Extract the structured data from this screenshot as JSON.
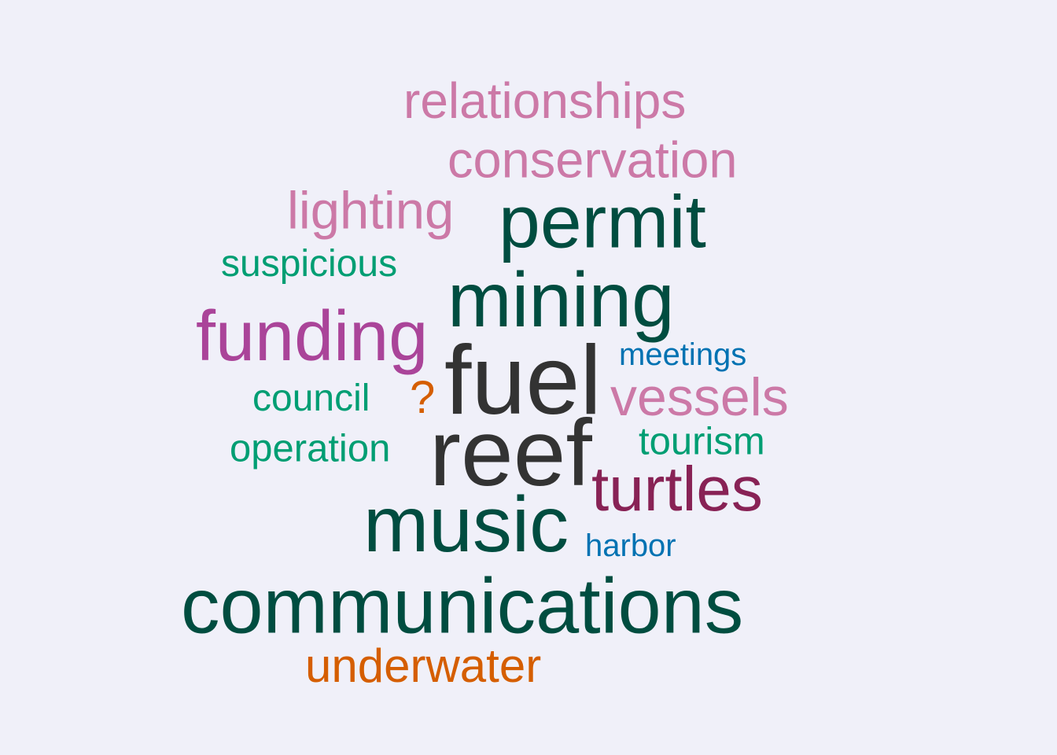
{
  "colors": {
    "background": "#f0f0f9"
  },
  "words": [
    {
      "text": "relationships",
      "color": "#cc79a7",
      "weight": 4
    },
    {
      "text": "conservation",
      "color": "#cc79a7",
      "weight": 4
    },
    {
      "text": "lighting",
      "color": "#cc79a7",
      "weight": 4
    },
    {
      "text": "permit",
      "color": "#004d40",
      "weight": 6
    },
    {
      "text": "suspicious",
      "color": "#009e73",
      "weight": 3
    },
    {
      "text": "mining",
      "color": "#004d40",
      "weight": 6
    },
    {
      "text": "funding",
      "color": "#aa4499",
      "weight": 6
    },
    {
      "text": "meetings",
      "color": "#0072b2",
      "weight": 2
    },
    {
      "text": "fuel",
      "color": "#333333",
      "weight": 8
    },
    {
      "text": "council",
      "color": "#009e73",
      "weight": 3
    },
    {
      "text": "?",
      "color": "#d55e00",
      "weight": 3
    },
    {
      "text": "vessels",
      "color": "#cc79a7",
      "weight": 4
    },
    {
      "text": "tourism",
      "color": "#009e73",
      "weight": 3
    },
    {
      "text": "operation",
      "color": "#009e73",
      "weight": 3
    },
    {
      "text": "reef",
      "color": "#333333",
      "weight": 8
    },
    {
      "text": "turtles",
      "color": "#882255",
      "weight": 5
    },
    {
      "text": "music",
      "color": "#004d40",
      "weight": 7
    },
    {
      "text": "harbor",
      "color": "#0072b2",
      "weight": 2
    },
    {
      "text": "communications",
      "color": "#004d40",
      "weight": 7
    },
    {
      "text": "underwater",
      "color": "#d55e00",
      "weight": 4
    }
  ]
}
